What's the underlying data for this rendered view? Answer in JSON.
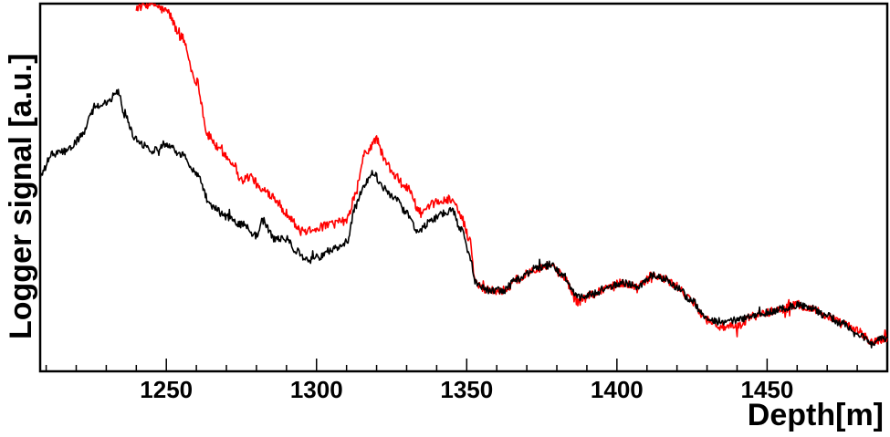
{
  "chart_data": {
    "type": "line",
    "title": "",
    "xlabel": "Depth[m]",
    "ylabel": "Logger signal [a.u.]",
    "xlim": [
      1208,
      1490
    ],
    "ylim": [
      0,
      100
    ],
    "x_ticks": [
      1250,
      1300,
      1350,
      1400,
      1450
    ],
    "grid": false,
    "legend": "none",
    "series": [
      {
        "color": "#ff0000",
        "noise": 1.2,
        "points": [
          [
            1240,
            99
          ],
          [
            1245,
            100
          ],
          [
            1250,
            98
          ],
          [
            1255,
            91
          ],
          [
            1260,
            79
          ],
          [
            1264,
            64
          ],
          [
            1268,
            60
          ],
          [
            1272,
            57
          ],
          [
            1275,
            52
          ],
          [
            1278,
            53
          ],
          [
            1282,
            49
          ],
          [
            1285,
            48
          ],
          [
            1290,
            43
          ],
          [
            1295,
            38
          ],
          [
            1300,
            39
          ],
          [
            1305,
            40
          ],
          [
            1310,
            41
          ],
          [
            1313,
            48
          ],
          [
            1316,
            59
          ],
          [
            1320,
            63
          ],
          [
            1323,
            57
          ],
          [
            1326,
            53
          ],
          [
            1330,
            50
          ],
          [
            1335,
            43
          ],
          [
            1340,
            46
          ],
          [
            1345,
            47
          ],
          [
            1348,
            42
          ],
          [
            1351,
            36
          ],
          [
            1353,
            24
          ],
          [
            1357,
            22
          ],
          [
            1362,
            22
          ],
          [
            1367,
            25
          ],
          [
            1373,
            28
          ],
          [
            1378,
            29
          ],
          [
            1382,
            26
          ],
          [
            1387,
            19
          ],
          [
            1392,
            21
          ],
          [
            1397,
            23
          ],
          [
            1402,
            24
          ],
          [
            1407,
            23
          ],
          [
            1412,
            26
          ],
          [
            1416,
            25
          ],
          [
            1420,
            23
          ],
          [
            1425,
            19
          ],
          [
            1430,
            14
          ],
          [
            1435,
            12
          ],
          [
            1440,
            12
          ],
          [
            1445,
            15
          ],
          [
            1450,
            16
          ],
          [
            1455,
            17
          ],
          [
            1460,
            18
          ],
          [
            1465,
            17
          ],
          [
            1470,
            15
          ],
          [
            1475,
            13
          ],
          [
            1480,
            11
          ],
          [
            1485,
            8
          ],
          [
            1490,
            9
          ]
        ]
      },
      {
        "color": "#000000",
        "noise": 1.0,
        "points": [
          [
            1208,
            53
          ],
          [
            1212,
            59
          ],
          [
            1217,
            60
          ],
          [
            1222,
            64
          ],
          [
            1226,
            72
          ],
          [
            1230,
            73
          ],
          [
            1234,
            76
          ],
          [
            1236,
            70
          ],
          [
            1240,
            63
          ],
          [
            1245,
            60
          ],
          [
            1250,
            62
          ],
          [
            1255,
            59
          ],
          [
            1260,
            54
          ],
          [
            1265,
            45
          ],
          [
            1270,
            42
          ],
          [
            1275,
            40
          ],
          [
            1280,
            37
          ],
          [
            1282,
            41
          ],
          [
            1286,
            36
          ],
          [
            1290,
            36
          ],
          [
            1293,
            33
          ],
          [
            1297,
            30
          ],
          [
            1300,
            31
          ],
          [
            1305,
            33
          ],
          [
            1310,
            35
          ],
          [
            1313,
            45
          ],
          [
            1316,
            51
          ],
          [
            1319,
            54
          ],
          [
            1322,
            50
          ],
          [
            1326,
            47
          ],
          [
            1330,
            43
          ],
          [
            1334,
            38
          ],
          [
            1338,
            41
          ],
          [
            1342,
            43
          ],
          [
            1345,
            44
          ],
          [
            1348,
            39
          ],
          [
            1351,
            31
          ],
          [
            1353,
            24
          ],
          [
            1357,
            22
          ],
          [
            1362,
            22
          ],
          [
            1367,
            25
          ],
          [
            1373,
            28
          ],
          [
            1378,
            29
          ],
          [
            1382,
            26
          ],
          [
            1387,
            20
          ],
          [
            1392,
            21
          ],
          [
            1397,
            23
          ],
          [
            1402,
            24
          ],
          [
            1407,
            23
          ],
          [
            1412,
            26
          ],
          [
            1416,
            25
          ],
          [
            1420,
            23
          ],
          [
            1425,
            19
          ],
          [
            1430,
            14
          ],
          [
            1435,
            13
          ],
          [
            1440,
            14
          ],
          [
            1445,
            15
          ],
          [
            1450,
            16
          ],
          [
            1455,
            17
          ],
          [
            1460,
            18
          ],
          [
            1465,
            17
          ],
          [
            1470,
            15
          ],
          [
            1475,
            13
          ],
          [
            1480,
            10
          ],
          [
            1485,
            8
          ],
          [
            1490,
            9
          ]
        ]
      }
    ]
  }
}
